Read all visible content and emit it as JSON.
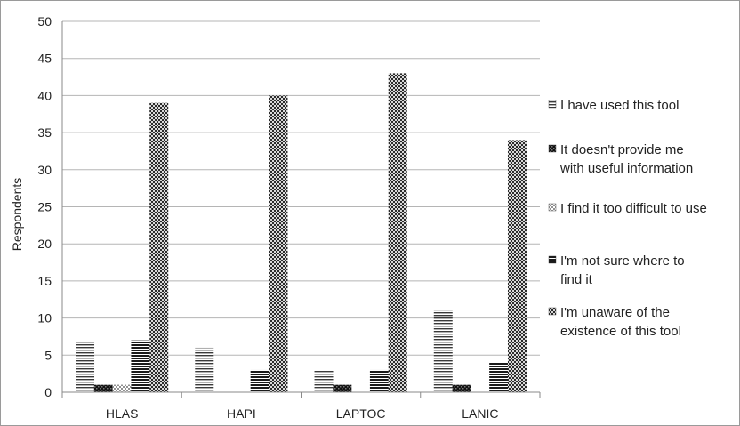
{
  "chart_data": {
    "type": "bar",
    "title": "",
    "xlabel": "",
    "ylabel": "Respondents",
    "ylim": [
      0,
      50
    ],
    "yticks": [
      0,
      5,
      10,
      15,
      20,
      25,
      30,
      35,
      40,
      45,
      50
    ],
    "grid": true,
    "legend_position": "right",
    "categories": [
      "HLAS",
      "HAPI",
      "LAPTOC",
      "LANIC"
    ],
    "series": [
      {
        "name": "I have used this tool",
        "pattern": "horizontal-lines",
        "values": [
          7,
          6,
          3,
          11
        ]
      },
      {
        "name": "It doesn't provide me with useful information",
        "pattern": "dark-checker",
        "values": [
          1,
          0,
          1,
          1
        ]
      },
      {
        "name": "I find it too difficult to use",
        "pattern": "light-dots",
        "values": [
          1,
          0,
          0,
          0
        ]
      },
      {
        "name": "I'm not sure where to find it",
        "pattern": "thick-horizontal-lines",
        "values": [
          7,
          3,
          3,
          4
        ]
      },
      {
        "name": "I'm unaware of the existence of this tool",
        "pattern": "crosshatch",
        "values": [
          39,
          40,
          43,
          34
        ]
      }
    ],
    "legend_lines": [
      [
        "I have used this tool"
      ],
      [
        "It doesn't provide me",
        "with useful information"
      ],
      [
        "I find it too difficult to use"
      ],
      [
        "I'm not sure where to",
        "find it"
      ],
      [
        "I'm unaware of the",
        "existence of this tool"
      ]
    ]
  }
}
